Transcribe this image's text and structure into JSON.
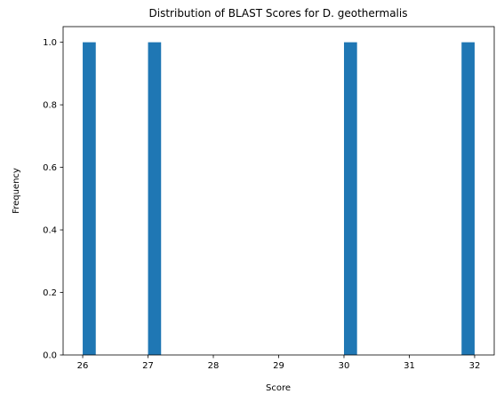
{
  "chart_data": {
    "type": "bar",
    "title": "Distribution of BLAST Scores for D. geothermalis",
    "xlabel": "Score",
    "ylabel": "Frequency",
    "xlim": [
      25.7,
      32.3
    ],
    "ylim": [
      0.0,
      1.05
    ],
    "x_ticks": [
      "26",
      "27",
      "28",
      "29",
      "30",
      "31",
      "32"
    ],
    "y_ticks": [
      "0.0",
      "0.2",
      "0.4",
      "0.6",
      "0.8",
      "1.0"
    ],
    "bin_width": 0.2,
    "bars": [
      {
        "x_start": 26.0,
        "x_end": 26.2,
        "value": 1
      },
      {
        "x_start": 27.0,
        "x_end": 27.2,
        "value": 1
      },
      {
        "x_start": 30.0,
        "x_end": 30.2,
        "value": 1
      },
      {
        "x_start": 31.8,
        "x_end": 32.0,
        "value": 1
      }
    ],
    "color": "#1f77b4",
    "grid": false,
    "legend": "none"
  }
}
